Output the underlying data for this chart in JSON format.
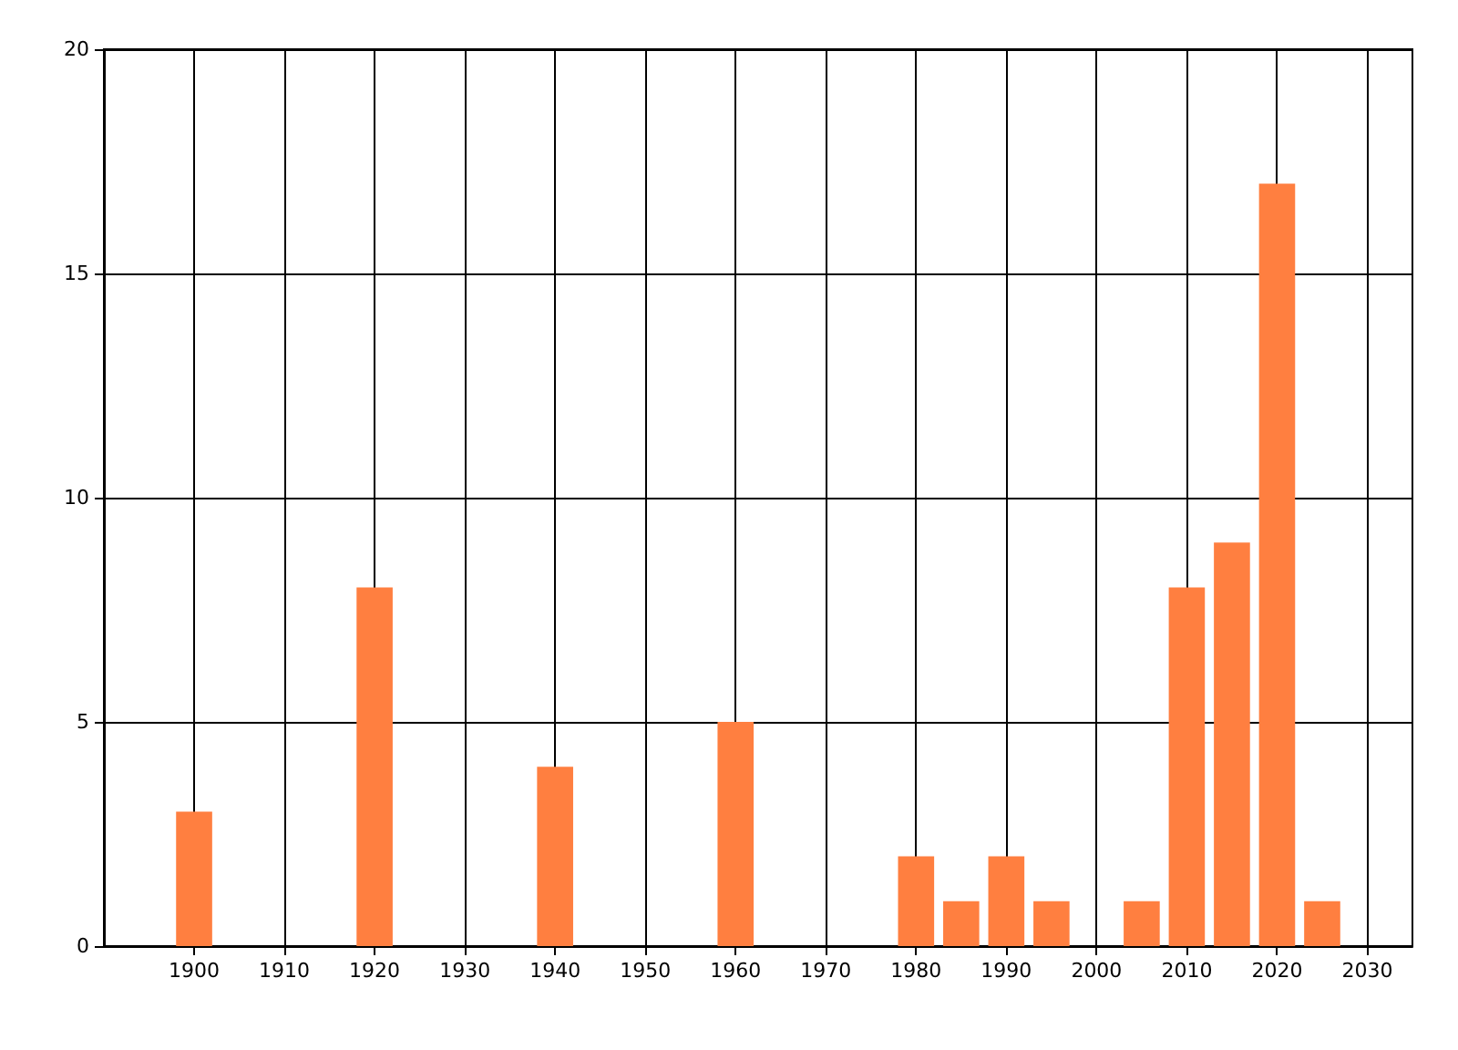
{
  "chart_data": {
    "type": "bar",
    "x": [
      1900,
      1920,
      1940,
      1960,
      1980,
      1985,
      1990,
      1995,
      2005,
      2010,
      2015,
      2020,
      2025
    ],
    "values": [
      3,
      8,
      4,
      5,
      2,
      1,
      2,
      1,
      1,
      8,
      9,
      17,
      1
    ],
    "color": "#ff7f40",
    "xlim": [
      1890,
      2035
    ],
    "xticks": [
      1900,
      1910,
      1920,
      1930,
      1940,
      1950,
      1960,
      1970,
      1980,
      1990,
      2000,
      2010,
      2020,
      2030
    ],
    "ylim": [
      0,
      20
    ],
    "yticks": [
      0,
      5,
      10,
      15,
      20
    ],
    "grid": true
  }
}
